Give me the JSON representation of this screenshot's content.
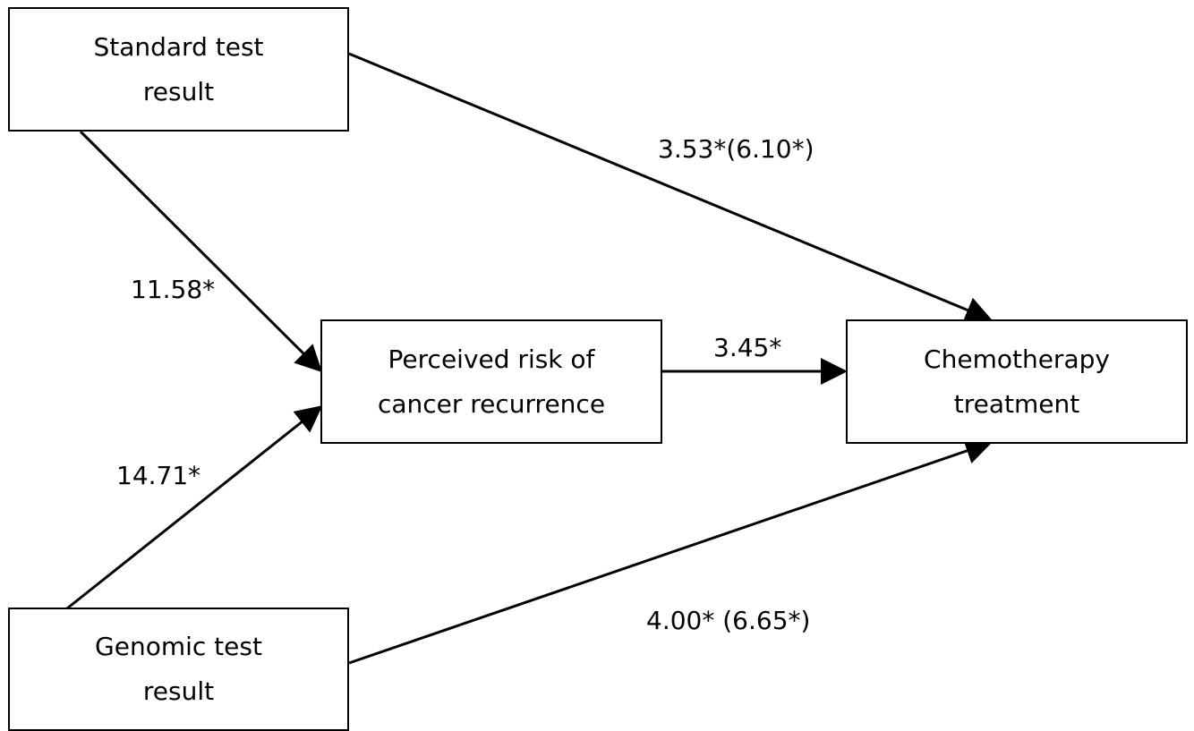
{
  "nodes": {
    "standard": {
      "line1": "Standard test",
      "line2": "result"
    },
    "genomic": {
      "line1": "Genomic test",
      "line2": "result"
    },
    "perceived": {
      "line1": "Perceived risk of",
      "line2": "cancer recurrence"
    },
    "chemo": {
      "line1": "Chemotherapy",
      "line2": "treatment"
    }
  },
  "edges": {
    "standard_to_perceived": "11.58*",
    "genomic_to_perceived": "14.71*",
    "perceived_to_chemo": "3.45*",
    "standard_to_chemo": "3.53*(6.10*)",
    "genomic_to_chemo": "4.00* (6.65*)"
  },
  "colors": {
    "stroke": "#000000",
    "background": "#ffffff"
  }
}
